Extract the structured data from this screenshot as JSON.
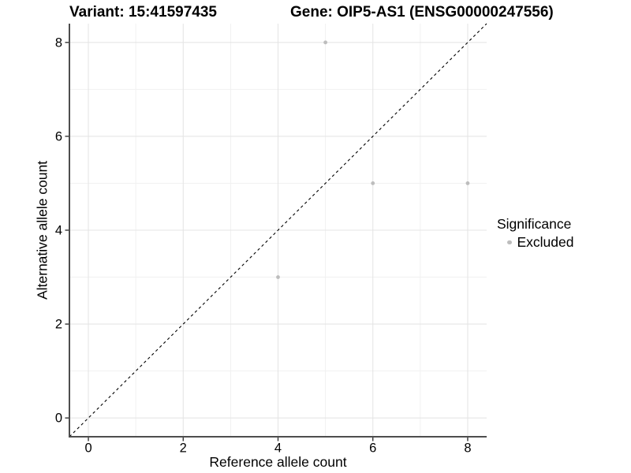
{
  "chart_data": {
    "type": "scatter",
    "title_left": "Variant: 15:41597435",
    "title_right": "Gene: OIP5-AS1 (ENSG00000247556)",
    "xlabel": "Reference allele count",
    "ylabel": "Alternative allele count",
    "xlim": [
      -0.4,
      8.4
    ],
    "ylim": [
      -0.4,
      8.4
    ],
    "x_ticks": [
      0,
      2,
      4,
      6,
      8
    ],
    "y_ticks": [
      0,
      2,
      4,
      6,
      8
    ],
    "x_minor_ticks": [
      1,
      3,
      5,
      7
    ],
    "y_minor_ticks": [
      1,
      3,
      5,
      7
    ],
    "grid": "major+minor",
    "legend_title": "Significance",
    "legend_position": "right",
    "series": [
      {
        "name": "Excluded",
        "color": "#bdbdbd",
        "points": [
          [
            5,
            8
          ],
          [
            6,
            5
          ],
          [
            8,
            5
          ],
          [
            4,
            3
          ]
        ]
      }
    ],
    "reference_line": {
      "equation": "y = x",
      "style": "dashed",
      "color": "#000000"
    }
  },
  "style": {
    "background": "#ffffff",
    "text_color": "#000000",
    "axis_line_color": "#4d4d4d",
    "tick_color": "#333333",
    "grid_major_color": "#e5e5e5",
    "grid_minor_color": "#f1f1f1",
    "point_radius": 2.4
  }
}
